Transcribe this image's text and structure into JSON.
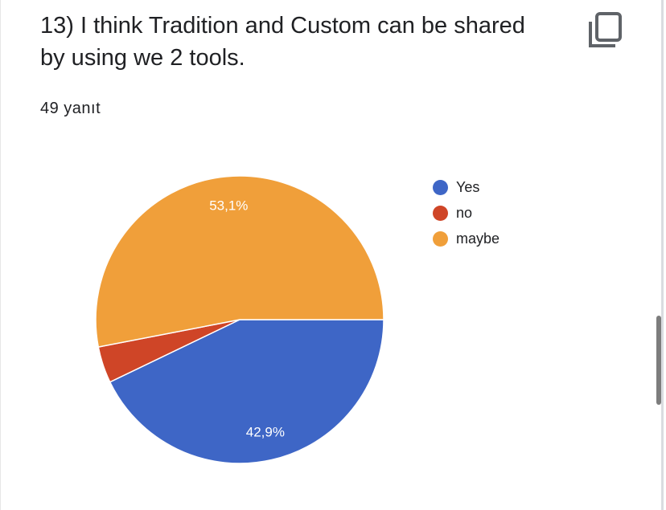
{
  "question": {
    "title": "13) I think Tradition and Custom can be shared by using we 2 tools.",
    "response_count": "49 yanıt"
  },
  "icons": {
    "copy": "copy-icon"
  },
  "chart_data": {
    "type": "pie",
    "categories": [
      "Yes",
      "no",
      "maybe"
    ],
    "values": [
      42.9,
      4.1,
      53.1
    ],
    "data_labels": [
      "42,9%",
      "",
      "53,1%"
    ],
    "colors": [
      "#3e66c6",
      "#cf4527",
      "#f09f3a"
    ],
    "legend": "right",
    "start": "3 o'clock, clockwise"
  }
}
